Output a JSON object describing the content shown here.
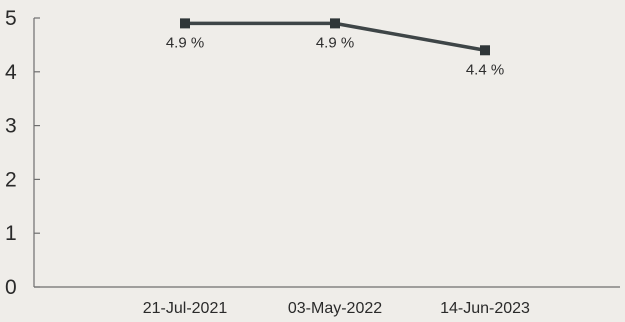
{
  "chart_data": {
    "type": "line",
    "categories": [
      "21-Jul-2021",
      "03-May-2022",
      "14-Jun-2023"
    ],
    "series": [
      {
        "values": [
          4.9,
          4.9,
          4.4
        ],
        "data_labels": [
          "4.9 %",
          "4.9 %",
          "4.4 %"
        ],
        "color": "#3e4547"
      }
    ],
    "y_ticks": [
      "0",
      "1",
      "2",
      "3",
      "4",
      "5"
    ],
    "ylim": [
      0,
      5
    ],
    "grid": false,
    "legend": "none"
  }
}
